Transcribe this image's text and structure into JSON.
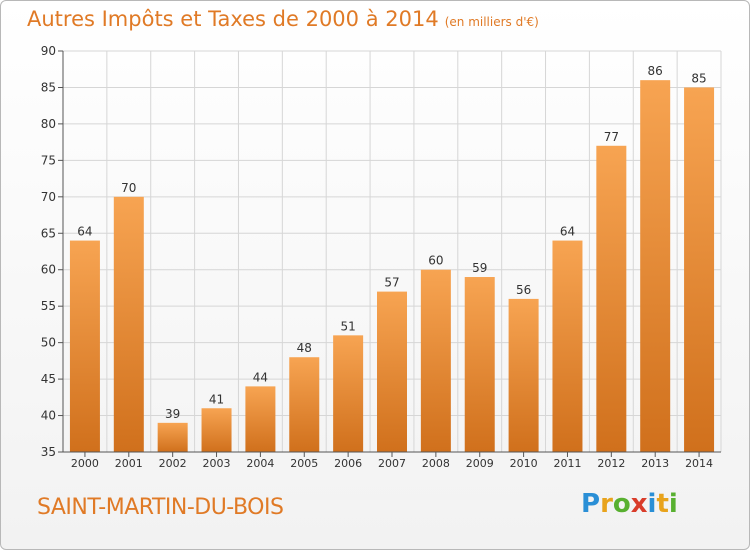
{
  "header": {
    "title": "Autres Impôts et Taxes de 2000 à 2014",
    "subtitle": "(en milliers d'€)"
  },
  "footer": {
    "commune": "SAINT-MARTIN-DU-BOIS",
    "brand": "Proxiti",
    "brand_letters": [
      {
        "ch": "P",
        "color": "#2a8fd6"
      },
      {
        "ch": "r",
        "color": "#e8a31c"
      },
      {
        "ch": "o",
        "color": "#58b030"
      },
      {
        "ch": "x",
        "color": "#d93c2a"
      },
      {
        "ch": "i",
        "color": "#2a8fd6"
      },
      {
        "ch": "t",
        "color": "#e8a31c"
      },
      {
        "ch": "i",
        "color": "#58b030"
      }
    ]
  },
  "colors": {
    "bar_top": "#f7a452",
    "bar_bottom": "#d0701c",
    "grid": "#d6d6d6",
    "axis_text": "#333333",
    "title": "#e07a26"
  },
  "chart_data": {
    "type": "bar",
    "categories": [
      "2000",
      "2001",
      "2002",
      "2003",
      "2004",
      "2005",
      "2006",
      "2007",
      "2008",
      "2009",
      "2010",
      "2011",
      "2012",
      "2013",
      "2014"
    ],
    "values": [
      64,
      70,
      39,
      41,
      44,
      48,
      51,
      57,
      60,
      59,
      56,
      64,
      77,
      86,
      85
    ],
    "title": "Autres Impôts et Taxes de 2000 à 2014",
    "subtitle": "(en milliers d'€)",
    "xlabel": "",
    "ylabel": "",
    "ylim": [
      35,
      90
    ],
    "yticks": [
      35,
      40,
      45,
      50,
      55,
      60,
      65,
      70,
      75,
      80,
      85,
      90
    ],
    "grid": true,
    "data_labels": true
  }
}
